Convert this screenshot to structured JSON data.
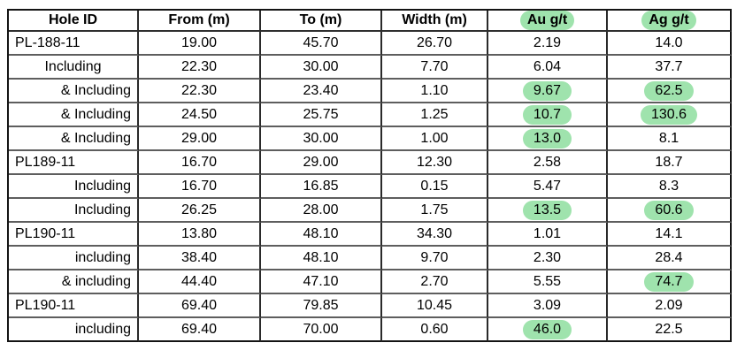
{
  "table": {
    "highlight_color": "#9fe3ad",
    "columns": [
      {
        "label": "Hole ID",
        "highlight": false
      },
      {
        "label": "From (m)",
        "highlight": false
      },
      {
        "label": "To (m)",
        "highlight": false
      },
      {
        "label": "Width (m)",
        "highlight": false
      },
      {
        "label": "Au g/t",
        "highlight": true
      },
      {
        "label": "Ag g/t",
        "highlight": true
      }
    ],
    "rows": [
      {
        "hole_id": "PL-188-11",
        "align": "left",
        "from": "19.00",
        "to": "45.70",
        "width": "26.70",
        "au": "2.19",
        "au_highlight": false,
        "ag": "14.0",
        "ag_highlight": false
      },
      {
        "hole_id": "Including",
        "align": "center",
        "from": "22.30",
        "to": "30.00",
        "width": "7.70",
        "au": "6.04",
        "au_highlight": false,
        "ag": "37.7",
        "ag_highlight": false
      },
      {
        "hole_id": "& Including",
        "align": "right",
        "from": "22.30",
        "to": "23.40",
        "width": "1.10",
        "au": "9.67",
        "au_highlight": true,
        "ag": "62.5",
        "ag_highlight": true
      },
      {
        "hole_id": "& Including",
        "align": "right",
        "from": "24.50",
        "to": "25.75",
        "width": "1.25",
        "au": "10.7",
        "au_highlight": true,
        "ag": "130.6",
        "ag_highlight": true
      },
      {
        "hole_id": "& Including",
        "align": "right",
        "from": "29.00",
        "to": "30.00",
        "width": "1.00",
        "au": "13.0",
        "au_highlight": true,
        "ag": "8.1",
        "ag_highlight": false
      },
      {
        "hole_id": "PL189-11",
        "align": "left",
        "from": "16.70",
        "to": "29.00",
        "width": "12.30",
        "au": "2.58",
        "au_highlight": false,
        "ag": "18.7",
        "ag_highlight": false
      },
      {
        "hole_id": "Including",
        "align": "right",
        "from": "16.70",
        "to": "16.85",
        "width": "0.15",
        "au": "5.47",
        "au_highlight": false,
        "ag": "8.3",
        "ag_highlight": false
      },
      {
        "hole_id": "Including",
        "align": "right",
        "from": "26.25",
        "to": "28.00",
        "width": "1.75",
        "au": "13.5",
        "au_highlight": true,
        "ag": "60.6",
        "ag_highlight": true
      },
      {
        "hole_id": "PL190-11",
        "align": "left",
        "from": "13.80",
        "to": "48.10",
        "width": "34.30",
        "au": "1.01",
        "au_highlight": false,
        "ag": "14.1",
        "ag_highlight": false
      },
      {
        "hole_id": "including",
        "align": "right",
        "from": "38.40",
        "to": "48.10",
        "width": "9.70",
        "au": "2.30",
        "au_highlight": false,
        "ag": "28.4",
        "ag_highlight": false
      },
      {
        "hole_id": "& including",
        "align": "right",
        "from": "44.40",
        "to": "47.10",
        "width": "2.70",
        "au": "5.55",
        "au_highlight": false,
        "ag": "74.7",
        "ag_highlight": true
      },
      {
        "hole_id": "PL190-11",
        "align": "left",
        "from": "69.40",
        "to": "79.85",
        "width": "10.45",
        "au": "3.09",
        "au_highlight": false,
        "ag": "2.09",
        "ag_highlight": false
      },
      {
        "hole_id": "including",
        "align": "right",
        "from": "69.40",
        "to": "70.00",
        "width": "0.60",
        "au": "46.0",
        "au_highlight": true,
        "ag": "22.5",
        "ag_highlight": false
      }
    ]
  }
}
